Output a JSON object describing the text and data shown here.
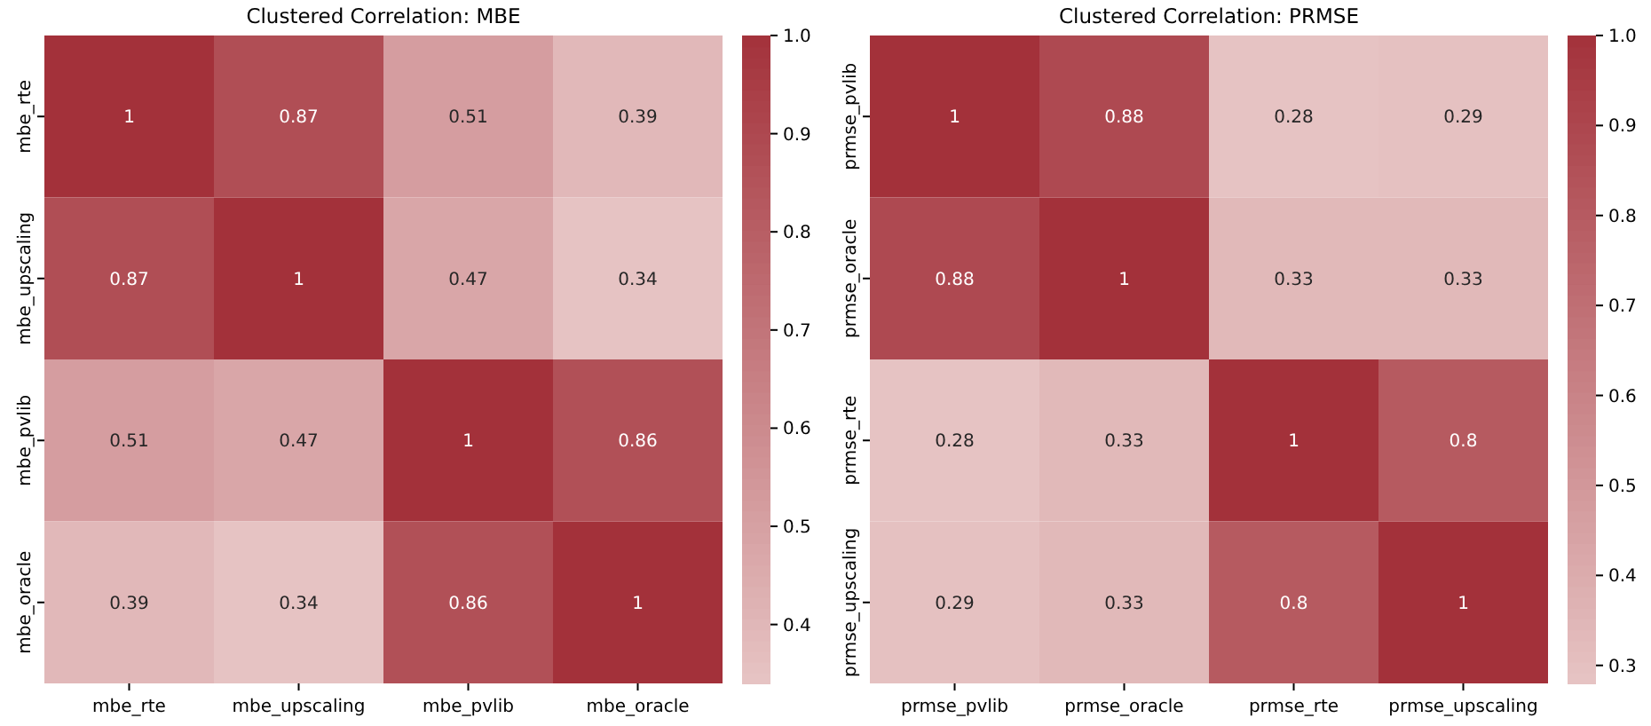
{
  "chart_data": [
    {
      "type": "heatmap",
      "title": "Clustered Correlation: MBE",
      "categories": [
        "mbe_rte",
        "mbe_upscaling",
        "mbe_pvlib",
        "mbe_oracle"
      ],
      "y_categories": [
        "mbe_rte",
        "mbe_upscaling",
        "mbe_pvlib",
        "mbe_oracle"
      ],
      "cells": [
        [
          1,
          0.87,
          0.51,
          0.39
        ],
        [
          0.87,
          1,
          0.47,
          0.34
        ],
        [
          0.51,
          0.47,
          1,
          0.86
        ],
        [
          0.39,
          0.34,
          0.86,
          1
        ]
      ],
      "clim": [
        0.34,
        1
      ],
      "cticks": [
        0.4,
        0.5,
        0.6,
        0.7,
        0.8,
        0.9,
        {
          "value": 1,
          "label": "1.0"
        }
      ],
      "data_labels": true
    },
    {
      "type": "heatmap",
      "title": "Clustered Correlation: PRMSE",
      "categories": [
        "prmse_pvlib",
        "prmse_oracle",
        "prmse_rte",
        "prmse_upscaling"
      ],
      "y_categories": [
        "prmse_pvlib",
        "prmse_oracle",
        "prmse_rte",
        "prmse_upscaling"
      ],
      "cells": [
        [
          1,
          0.88,
          0.28,
          0.29
        ],
        [
          0.88,
          1,
          0.33,
          0.33
        ],
        [
          0.28,
          0.33,
          1,
          0.8
        ],
        [
          0.29,
          0.33,
          0.8,
          1
        ]
      ],
      "clim": [
        0.28,
        1
      ],
      "cticks": [
        0.3,
        0.4,
        0.5,
        0.6,
        0.7,
        0.8,
        0.9,
        {
          "value": 1,
          "label": "1.0"
        }
      ],
      "data_labels": true
    }
  ]
}
